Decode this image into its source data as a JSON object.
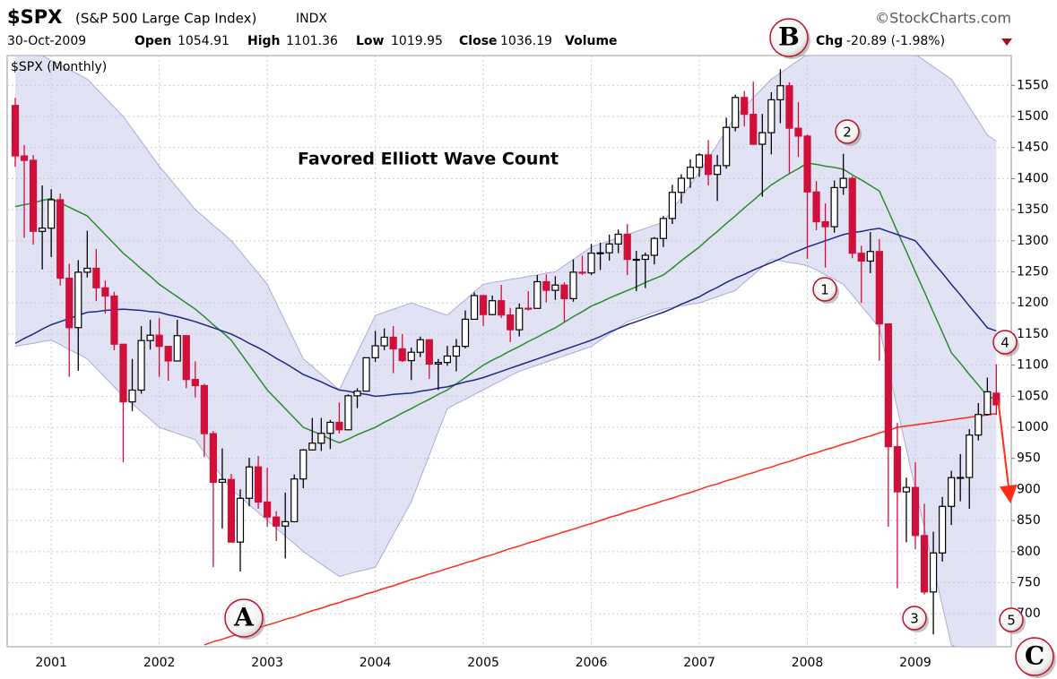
{
  "chart_data": {
    "type": "candlestick",
    "title": "$SPX",
    "subtitle": "(S&P 500 Large Cap Index)",
    "exchange": "INDX",
    "source": "©StockCharts.com",
    "date": "30-Oct-2009",
    "header_labels": [
      "Open",
      "High",
      "Low",
      "Close",
      "Volume",
      "Chg"
    ],
    "change": "-20.89 (-1.98%)",
    "panel_label": "$SPX (Monthly)",
    "annotation": "Favored Elliott Wave Count",
    "wave_labels": [
      "A",
      "B",
      "C",
      "1",
      "2",
      "3",
      "4",
      "5"
    ],
    "up_color": "#000000",
    "down_color": "#d0103a",
    "x": [
      null,
      null,
      null,
      null,
      "2001",
      null,
      null,
      null,
      null,
      null,
      null,
      null,
      null,
      null,
      null,
      null,
      "2002",
      null,
      null,
      null,
      null,
      null,
      null,
      null,
      null,
      null,
      null,
      null,
      "2003",
      null,
      null,
      null,
      null,
      null,
      null,
      null,
      null,
      null,
      null,
      null,
      "2004",
      null,
      null,
      null,
      null,
      null,
      null,
      null,
      null,
      null,
      null,
      null,
      "2005",
      null,
      null,
      null,
      null,
      null,
      null,
      null,
      null,
      null,
      null,
      null,
      "2006",
      null,
      null,
      null,
      null,
      null,
      null,
      null,
      null,
      null,
      null,
      null,
      "2007",
      null,
      null,
      null,
      null,
      null,
      null,
      null,
      null,
      null,
      null,
      null,
      "2008",
      null,
      null,
      null,
      null,
      null,
      null,
      null,
      null,
      null,
      null,
      null,
      "2009",
      null,
      null,
      null,
      null,
      null,
      null,
      null,
      null,
      null
    ],
    "open": [
      1517.7,
      1436.5,
      1429.4,
      1315.2,
      1320.3,
      1366.0,
      1239.9,
      1160.3,
      1249.5,
      1255.8,
      1224.4,
      1211.2,
      1133.6,
      1040.9,
      1059.8,
      1139.5,
      1148.1,
      1130.2,
      1106.7,
      1147.4,
      1076.9,
      1067.1,
      989.8,
      911.6,
      916.1,
      815.3,
      885.8,
      936.3,
      879.8,
      855.7,
      841.2,
      848.2,
      916.9,
      963.6,
      974.5,
      990.3,
      1008.0,
      996.0,
      1050.7,
      1058.2,
      1111.9,
      1131.1,
      1144.9,
      1126.2,
      1107.3,
      1120.7,
      1140.8,
      1101.7,
      1104.2,
      1114.6,
      1130.2,
      1173.8,
      1211.9,
      1181.3,
      1203.6,
      1180.6,
      1156.9,
      1191.5,
      1191.3,
      1234.2,
      1220.3,
      1228.8,
      1207.0,
      1249.5,
      1248.3,
      1280.1,
      1280.7,
      1294.9,
      1310.6,
      1270.1,
      1270.2,
      1276.7,
      1303.8,
      1335.9,
      1377.9,
      1400.6,
      1418.3,
      1438.2,
      1406.8,
      1420.9,
      1482.4,
      1530.6,
      1503.4,
      1455.3,
      1473.9,
      1526.8,
      1549.4,
      1481.1,
      1468.4,
      1378.6,
      1330.6,
      1322.7,
      1385.6,
      1400.4,
      1280.0,
      1267.4,
      1282.8,
      1166.4,
      968.8,
      896.2,
      903.3,
      825.9,
      735.1,
      797.9,
      872.8,
      919.1,
      919.3,
      987.5,
      1020.6,
      1054.91
    ],
    "high": [
      1530,
      1454,
      1438,
      1389,
      1383,
      1376,
      1263,
      1269,
      1316,
      1287,
      1236,
      1218,
      1134,
      1110,
      1163,
      1173,
      1176,
      1131,
      1173,
      1147,
      1106,
      1070,
      994,
      966,
      925,
      900,
      951,
      954,
      935,
      865,
      895,
      924,
      965,
      1015,
      1015,
      1012,
      1040,
      1053,
      1063,
      1112,
      1155,
      1159,
      1163,
      1150,
      1128,
      1146,
      1141,
      1110,
      1131,
      1142,
      1188,
      1217,
      1212,
      1212,
      1229,
      1192,
      1199,
      1219,
      1245,
      1246,
      1243,
      1233,
      1270,
      1276,
      1295,
      1297,
      1310,
      1318,
      1327,
      1284,
      1281,
      1306,
      1340,
      1390,
      1407,
      1431,
      1441,
      1462,
      1438,
      1498,
      1535,
      1541,
      1556,
      1504,
      1539,
      1576,
      1555,
      1523,
      1471,
      1396,
      1360,
      1397,
      1440,
      1404,
      1292,
      1314,
      1303,
      1167,
      1007,
      919,
      944,
      877,
      832,
      888,
      930,
      957,
      997,
      1039,
      1080,
      1101.36
    ],
    "low": [
      1419,
      1305,
      1294,
      1254,
      1274,
      1228,
      1081,
      1091,
      1241,
      1203,
      1183,
      1124,
      944,
      1026,
      1054,
      1125,
      1081,
      1075,
      1106,
      1063,
      1048,
      952,
      775,
      837,
      815,
      768,
      873,
      869,
      840,
      817,
      789,
      847,
      902,
      963,
      962,
      965,
      990,
      995,
      1031,
      1058,
      1105,
      1124,
      1087,
      1105,
      1076,
      1113,
      1078,
      1060,
      1099,
      1090,
      1127,
      1173,
      1163,
      1180,
      1176,
      1137,
      1146,
      1188,
      1191,
      1201,
      1205,
      1169,
      1202,
      1245,
      1245,
      1253,
      1268,
      1280,
      1245,
      1219,
      1224,
      1262,
      1290,
      1327,
      1360,
      1385,
      1403,
      1389,
      1364,
      1416,
      1476,
      1484,
      1454,
      1371,
      1439,
      1489,
      1407,
      1435,
      1271,
      1317,
      1257,
      1313,
      1374,
      1272,
      1200,
      1248,
      1107,
      840,
      741,
      815,
      804,
      731,
      667,
      784,
      843,
      881,
      869,
      979,
      1019,
      1019.95
    ],
    "close": [
      1436.5,
      1429.4,
      1315.2,
      1320.3,
      1366.0,
      1239.9,
      1160.3,
      1249.5,
      1255.8,
      1224.4,
      1211.2,
      1133.6,
      1040.9,
      1059.8,
      1139.5,
      1148.1,
      1130.2,
      1106.7,
      1147.4,
      1076.9,
      1067.1,
      989.8,
      911.6,
      916.1,
      815.3,
      885.8,
      936.3,
      879.8,
      855.7,
      841.2,
      848.2,
      916.9,
      963.6,
      974.5,
      990.3,
      1008.0,
      996.0,
      1050.7,
      1058.2,
      1111.9,
      1131.1,
      1144.9,
      1126.2,
      1107.3,
      1120.7,
      1140.8,
      1101.7,
      1104.2,
      1114.6,
      1130.2,
      1173.8,
      1211.9,
      1181.3,
      1203.6,
      1180.6,
      1156.9,
      1191.5,
      1191.3,
      1234.2,
      1220.3,
      1228.8,
      1207.0,
      1249.5,
      1248.3,
      1280.1,
      1280.7,
      1294.9,
      1310.6,
      1270.1,
      1270.2,
      1276.7,
      1303.8,
      1335.9,
      1377.9,
      1400.6,
      1418.3,
      1438.2,
      1406.8,
      1420.9,
      1482.4,
      1530.6,
      1503.4,
      1455.3,
      1473.9,
      1526.8,
      1549.4,
      1481.1,
      1468.4,
      1378.6,
      1330.6,
      1322.7,
      1385.6,
      1400.4,
      1280.0,
      1267.4,
      1282.8,
      1166.4,
      968.8,
      896.2,
      903.3,
      825.9,
      735.1,
      797.9,
      872.8,
      919.1,
      919.3,
      987.5,
      1020.6,
      1057.1,
      1036.19
    ],
    "band": {
      "color": "#c8cbea",
      "line_color": "#a9acd6",
      "upper": [
        1620,
        1613,
        1605,
        1598,
        1590,
        1583,
        1575,
        1568,
        1560,
        1545,
        1530,
        1515,
        1500,
        1480,
        1460,
        1440,
        1420,
        1403,
        1385,
        1368,
        1350,
        1338,
        1325,
        1313,
        1300,
        1283,
        1265,
        1248,
        1230,
        1200,
        1170,
        1140,
        1110,
        1098,
        1085,
        1073,
        1060,
        1090,
        1120,
        1150,
        1180,
        1185,
        1190,
        1195,
        1200,
        1195,
        1190,
        1185,
        1180,
        1193,
        1205,
        1218,
        1230,
        1233,
        1235,
        1238,
        1240,
        1243,
        1245,
        1248,
        1250,
        1260,
        1270,
        1280,
        1290,
        1295,
        1300,
        1305,
        1310,
        1315,
        1320,
        1325,
        1330,
        1350,
        1370,
        1390,
        1410,
        1433,
        1455,
        1478,
        1500,
        1515,
        1530,
        1545,
        1560,
        1570,
        1580,
        1590,
        1600,
        1603,
        1605,
        1608,
        1610,
        1613,
        1615,
        1618,
        1620,
        1615,
        1610,
        1605,
        1600,
        1590,
        1580,
        1570,
        1560,
        1538,
        1515,
        1493,
        1470,
        1460
      ],
      "lower": [
        1130,
        1133,
        1135,
        1138,
        1140,
        1133,
        1125,
        1118,
        1110,
        1095,
        1080,
        1065,
        1050,
        1038,
        1025,
        1013,
        1000,
        995,
        990,
        985,
        980,
        960,
        940,
        920,
        900,
        888,
        875,
        863,
        850,
        838,
        825,
        813,
        800,
        790,
        780,
        770,
        760,
        764,
        768,
        771,
        775,
        801,
        828,
        854,
        880,
        918,
        955,
        993,
        1030,
        1038,
        1045,
        1053,
        1060,
        1068,
        1075,
        1083,
        1090,
        1095,
        1100,
        1105,
        1110,
        1115,
        1120,
        1125,
        1130,
        1140,
        1150,
        1160,
        1170,
        1175,
        1180,
        1185,
        1190,
        1193,
        1195,
        1198,
        1200,
        1205,
        1210,
        1215,
        1220,
        1233,
        1245,
        1258,
        1270,
        1268,
        1265,
        1263,
        1260,
        1253,
        1245,
        1238,
        1230,
        1213,
        1195,
        1178,
        1160,
        1095,
        1030,
        965,
        900,
        838,
        775,
        713,
        650,
        643,
        635,
        628,
        620,
        620
      ]
    },
    "overlays": [
      {
        "color": "#2e8b2e",
        "values": [
          1355,
          1358,
          1361,
          1365,
          1368,
          1361,
          1354,
          1347,
          1340,
          1325,
          1310,
          1295,
          1280,
          1268,
          1255,
          1243,
          1230,
          1220,
          1210,
          1200,
          1190,
          1178,
          1165,
          1153,
          1140,
          1120,
          1100,
          1080,
          1060,
          1045,
          1030,
          1015,
          1000,
          994,
          988,
          981,
          975,
          981,
          988,
          994,
          1000,
          1008,
          1015,
          1023,
          1030,
          1038,
          1045,
          1053,
          1060,
          1070,
          1080,
          1090,
          1100,
          1108,
          1115,
          1123,
          1130,
          1138,
          1145,
          1153,
          1160,
          1169,
          1178,
          1186,
          1195,
          1201,
          1208,
          1214,
          1220,
          1226,
          1233,
          1239,
          1245,
          1256,
          1268,
          1279,
          1290,
          1303,
          1315,
          1328,
          1340,
          1353,
          1365,
          1378,
          1390,
          1399,
          1408,
          1416,
          1425,
          1423,
          1420,
          1418,
          1415,
          1406,
          1398,
          1389,
          1380,
          1348,
          1315,
          1283,
          1250,
          1218,
          1185,
          1153,
          1120,
          1103,
          1085,
          1068,
          1050,
          1045
        ]
      },
      {
        "color": "#1c2a8c",
        "values": [
          1135,
          1143,
          1150,
          1158,
          1165,
          1170,
          1175,
          1180,
          1185,
          1186,
          1188,
          1189,
          1190,
          1189,
          1188,
          1186,
          1185,
          1181,
          1178,
          1174,
          1170,
          1165,
          1160,
          1155,
          1150,
          1143,
          1135,
          1128,
          1120,
          1111,
          1103,
          1094,
          1085,
          1079,
          1073,
          1066,
          1060,
          1058,
          1055,
          1053,
          1050,
          1051,
          1053,
          1054,
          1055,
          1058,
          1060,
          1063,
          1065,
          1069,
          1073,
          1076,
          1080,
          1085,
          1090,
          1095,
          1100,
          1105,
          1110,
          1115,
          1120,
          1125,
          1130,
          1135,
          1140,
          1146,
          1153,
          1159,
          1165,
          1170,
          1175,
          1180,
          1185,
          1191,
          1198,
          1204,
          1210,
          1218,
          1225,
          1233,
          1240,
          1246,
          1253,
          1259,
          1265,
          1271,
          1278,
          1284,
          1290,
          1295,
          1300,
          1305,
          1310,
          1313,
          1315,
          1318,
          1320,
          1315,
          1310,
          1305,
          1300,
          1283,
          1265,
          1248,
          1230,
          1213,
          1195,
          1178,
          1160,
          1155
        ]
      },
      {
        "color": "#ff2a1a",
        "values": [
          null,
          null,
          null,
          null,
          null,
          null,
          null,
          null,
          null,
          null,
          null,
          null,
          null,
          null,
          null,
          null,
          null,
          null,
          null,
          null,
          null,
          650,
          655,
          659,
          664,
          668,
          673,
          677,
          682,
          686,
          691,
          695,
          700,
          705,
          709,
          714,
          718,
          723,
          727,
          732,
          736,
          741,
          745,
          750,
          755,
          759,
          764,
          768,
          773,
          777,
          782,
          786,
          791,
          795,
          800,
          805,
          809,
          814,
          818,
          823,
          827,
          832,
          836,
          841,
          845,
          850,
          855,
          859,
          864,
          868,
          873,
          877,
          882,
          886,
          891,
          895,
          900,
          905,
          909,
          914,
          918,
          923,
          927,
          932,
          936,
          941,
          945,
          950,
          955,
          959,
          964,
          968,
          973,
          977,
          982,
          986,
          991,
          995,
          1000,
          1002,
          1004,
          1006,
          1008,
          1010,
          1012,
          1014,
          1016,
          1018,
          1020,
          1022
        ]
      }
    ],
    "ylim": [
      647,
      1598
    ],
    "yticks": [
      700,
      750,
      800,
      850,
      900,
      950,
      1000,
      1050,
      1100,
      1150,
      1200,
      1250,
      1300,
      1350,
      1400,
      1450,
      1500,
      1550
    ],
    "grid": true
  }
}
